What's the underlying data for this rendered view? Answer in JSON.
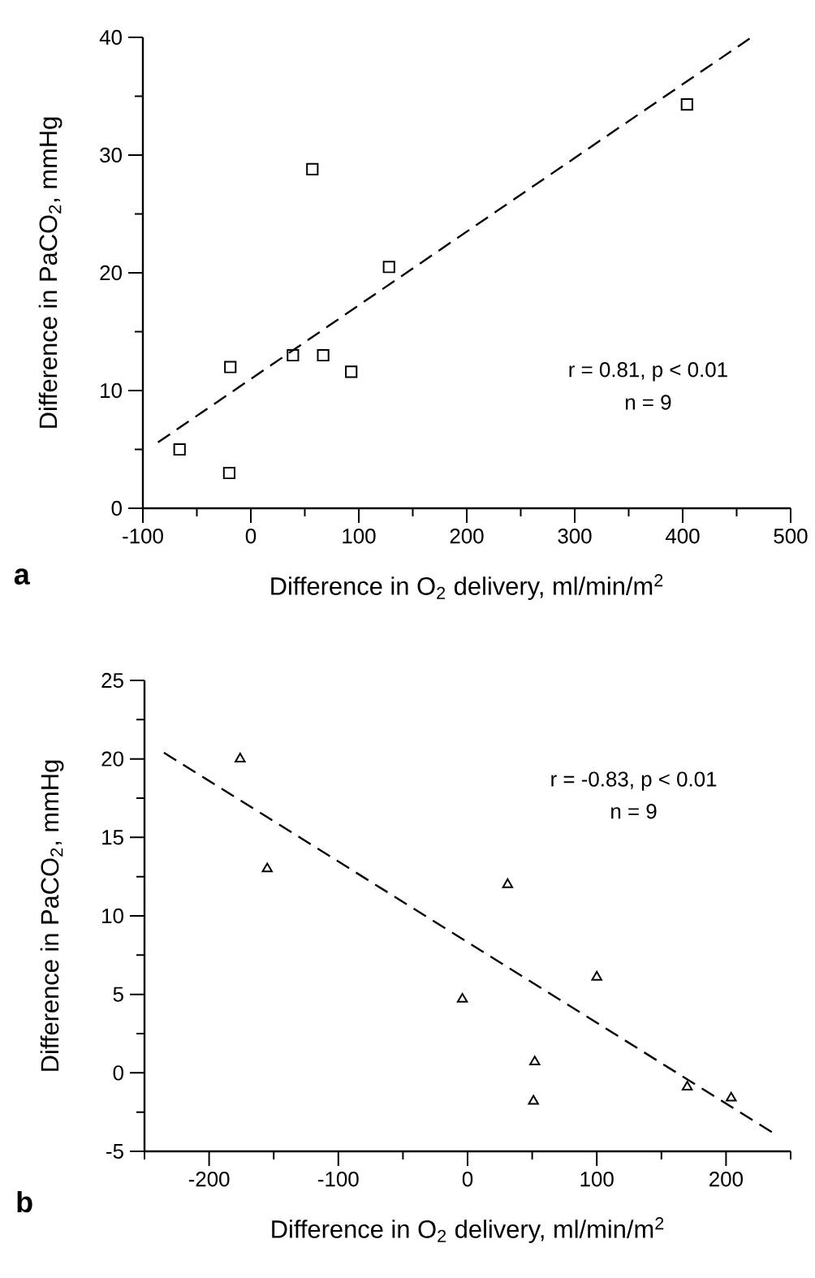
{
  "chart_data": [
    {
      "type": "scatter",
      "xlabel": "Difference in O$_{2}$ delivery, ml/min/m$^{2}$",
      "ylabel": "Difference in PaCO$_{2}$, mmHg",
      "annotations": [
        "r = 0.81, p < 0.01",
        "n = 9",
        "a"
      ],
      "marker": "square",
      "xlim": [
        -100,
        500
      ],
      "ylim": [
        0,
        40
      ],
      "xticks": [
        -100,
        {
          "value": -50,
          "label": null
        },
        0,
        {
          "value": 50,
          "label": null
        },
        100,
        {
          "value": 150,
          "label": null
        },
        200,
        {
          "value": 250,
          "label": null
        },
        300,
        {
          "value": 350,
          "label": null
        },
        400,
        {
          "value": 450,
          "label": null
        },
        500
      ],
      "yticks": [
        0,
        {
          "value": 5,
          "label": null
        },
        10,
        {
          "value": 15,
          "label": null
        },
        20,
        {
          "value": 25,
          "label": null
        },
        30,
        {
          "value": 35,
          "label": null
        },
        40
      ],
      "series": [
        {
          "color": "#000000",
          "x": [
            -66,
            -20,
            -19,
            39,
            57,
            67,
            93,
            128,
            404
          ],
          "values": [
            5,
            3,
            12,
            13,
            28.8,
            13,
            11.6,
            20.5,
            34.3
          ]
        },
        {
          "type": "line",
          "line_style": "dashed",
          "marker": "none",
          "color": "#000000",
          "x": [
            -86,
            462
          ],
          "values": [
            5.6,
            39.9
          ]
        }
      ]
    },
    {
      "type": "scatter",
      "xlabel": "Difference in O$_{2}$ delivery, ml/min/m$^{2}$",
      "ylabel": "Difference in PaCO$_{2}$, mmHg",
      "annotations": [
        "r = -0.83, p < 0.01",
        "n = 9",
        "b"
      ],
      "marker": "triangle",
      "xlim": [
        -250,
        250
      ],
      "ylim": [
        -5,
        25
      ],
      "xticks": [
        {
          "value": -250,
          "label": null
        },
        -200,
        {
          "value": -150,
          "label": null
        },
        -100,
        {
          "value": -50,
          "label": null
        },
        0,
        {
          "value": 50,
          "label": null
        },
        100,
        {
          "value": 150,
          "label": null
        },
        200,
        {
          "value": 250,
          "label": null
        }
      ],
      "yticks": [
        -5,
        {
          "value": -2.5,
          "label": null
        },
        0,
        {
          "value": 2.5,
          "label": null
        },
        5,
        {
          "value": 7.5,
          "label": null
        },
        10,
        {
          "value": 12.5,
          "label": null
        },
        15,
        {
          "value": 17.5,
          "label": null
        },
        20,
        {
          "value": 22.5,
          "label": null
        },
        25
      ],
      "series": [
        {
          "color": "#000000",
          "x": [
            -176,
            -155,
            -4,
            31,
            52,
            51,
            100,
            170,
            204
          ],
          "values": [
            20,
            13,
            4.7,
            12,
            0.7,
            -1.8,
            6.1,
            -0.9,
            -1.6
          ]
        },
        {
          "type": "line",
          "line_style": "dashed",
          "marker": "none",
          "color": "#000000",
          "x": [
            -235,
            236
          ],
          "values": [
            20.4,
            -3.8
          ]
        }
      ]
    }
  ]
}
